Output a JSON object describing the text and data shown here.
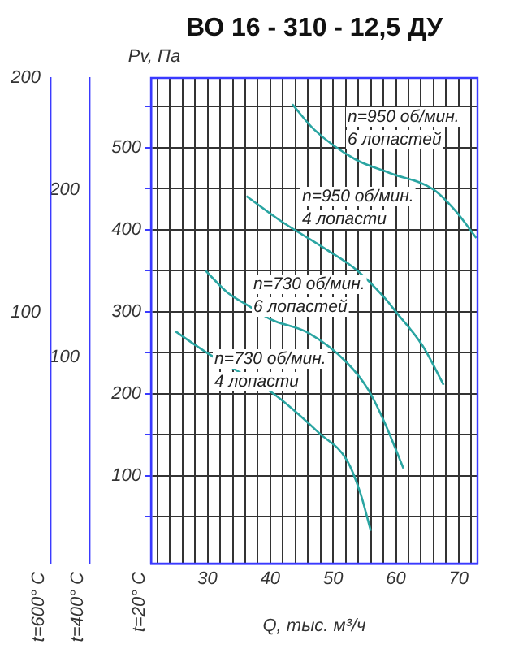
{
  "chart_data": {
    "type": "line",
    "title": "ВО 16 - 310 - 12,5 ДУ",
    "xlabel": "Q, тыс. м³/ч",
    "ylabel": "Pv, Па",
    "y2label": "t=400° C",
    "y3label": "t=600° C",
    "annotations": [
      "t=20° C"
    ],
    "xlim": [
      21,
      73
    ],
    "xticks": [
      {
        "value": 22,
        "label": null
      },
      {
        "value": 24,
        "label": null
      },
      {
        "value": 26,
        "label": null
      },
      {
        "value": 28,
        "label": null
      },
      30,
      {
        "value": 32,
        "label": null
      },
      {
        "value": 34,
        "label": null
      },
      {
        "value": 36,
        "label": null
      },
      {
        "value": 38,
        "label": null
      },
      40,
      {
        "value": 42,
        "label": null
      },
      {
        "value": 44,
        "label": null
      },
      {
        "value": 46,
        "label": null
      },
      {
        "value": 48,
        "label": null
      },
      50,
      {
        "value": 52,
        "label": null
      },
      {
        "value": 54,
        "label": null
      },
      {
        "value": 56,
        "label": null
      },
      {
        "value": 58,
        "label": null
      },
      60,
      {
        "value": 62,
        "label": null
      },
      {
        "value": 64,
        "label": null
      },
      {
        "value": 66,
        "label": null
      },
      {
        "value": 68,
        "label": null
      },
      70,
      {
        "value": 72,
        "label": null
      }
    ],
    "ylim": [
      -7,
      585
    ],
    "yticks": [
      {
        "value": 50,
        "label": null
      },
      100,
      {
        "value": 150,
        "label": null
      },
      200,
      {
        "value": 250,
        "label": null
      },
      300,
      {
        "value": 350,
        "label": null
      },
      400,
      {
        "value": 450,
        "label": null
      },
      500,
      {
        "value": 550,
        "label": null
      }
    ],
    "y2lim": [
      -23,
      267
    ],
    "y2ticks": [
      100,
      200
    ],
    "y3lim": [
      -7,
      200
    ],
    "y3ticks": [
      100,
      200
    ],
    "grid": true,
    "legend": false,
    "marker": "none",
    "line_style": "solid",
    "series": [
      {
        "name": "n=950 об/мин. 6 лопастей",
        "color": "#2aa5a2",
        "x": [
          43.5,
          47,
          53.5,
          59.1,
          66,
          69.5,
          72.8
        ],
        "values": [
          553,
          522,
          486,
          469,
          449,
          423,
          390
        ]
      },
      {
        "name": "n=950 об/мин. 4 лопасти",
        "color": "#2aa5a2",
        "x": [
          36.2,
          41.8,
          48.7,
          53.9,
          58.2,
          60,
          64.3,
          67.6
        ],
        "values": [
          441,
          410,
          377,
          350,
          317,
          300,
          258,
          211
        ]
      },
      {
        "name": "n=730 об/мин. 6 лопастей",
        "color": "#2aa5a2",
        "x": [
          29.7,
          33.1,
          36.6,
          40,
          46.1,
          52.2,
          55.6,
          58.2,
          61.2
        ],
        "values": [
          350,
          324,
          307,
          291,
          274,
          238,
          205,
          165,
          109
        ]
      },
      {
        "name": "n=730 об/мин. 4 лопасти",
        "color": "#2aa5a2",
        "x": [
          24.9,
          29.7,
          40.9,
          47.8,
          52.2,
          54.3,
          56
        ],
        "values": [
          276,
          251,
          198,
          152,
          119,
          80,
          33
        ]
      }
    ]
  }
}
